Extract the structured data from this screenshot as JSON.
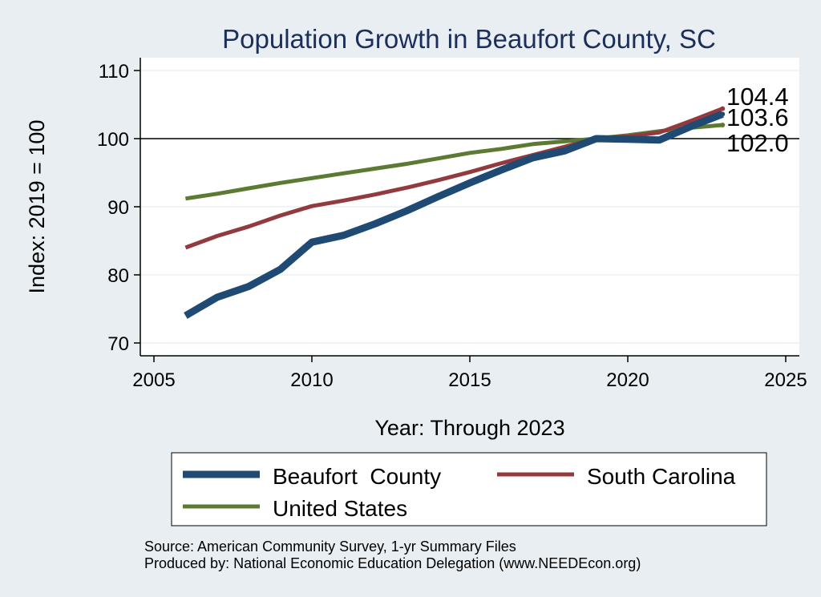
{
  "chart_data": {
    "type": "line",
    "title": "Population Growth in Beaufort County, SC",
    "xlabel": "Year: Through 2023",
    "ylabel": "Index: 2019 = 100",
    "xlim": [
      2005,
      2025
    ],
    "ylim": [
      70,
      110
    ],
    "xticks": [
      "2005",
      "2010",
      "2015",
      "2020",
      "2025"
    ],
    "yticks": [
      "70",
      "80",
      "90",
      "100",
      "110"
    ],
    "reference_line": 100,
    "grid": true,
    "legend_position": "bottom",
    "end_labels": [
      "104.4",
      "103.6",
      "102.0"
    ],
    "series": [
      {
        "name": "Beaufort  County",
        "color": "#1e4a74",
        "x": [
          2006,
          2007,
          2008,
          2009,
          2010,
          2011,
          2012,
          2013,
          2014,
          2015,
          2016,
          2017,
          2018,
          2019,
          2020,
          2021,
          2022,
          2023
        ],
        "values": [
          74.0,
          76.7,
          78.3,
          80.8,
          84.8,
          85.8,
          87.5,
          89.4,
          91.5,
          93.5,
          95.4,
          97.2,
          98.2,
          100.0,
          99.9,
          99.8,
          101.8,
          103.6
        ]
      },
      {
        "name": "South Carolina",
        "color": "#933a3f",
        "x": [
          2006,
          2007,
          2008,
          2009,
          2010,
          2011,
          2012,
          2013,
          2014,
          2015,
          2016,
          2017,
          2018,
          2019,
          2020,
          2021,
          2022,
          2023
        ],
        "values": [
          84.0,
          85.7,
          87.1,
          88.7,
          90.1,
          90.9,
          91.8,
          92.8,
          93.9,
          95.1,
          96.4,
          97.6,
          98.8,
          100.0,
          100.3,
          100.9,
          102.6,
          104.4
        ]
      },
      {
        "name": "United States",
        "color": "#5b7a32",
        "x": [
          2006,
          2007,
          2008,
          2009,
          2010,
          2011,
          2012,
          2013,
          2014,
          2015,
          2016,
          2017,
          2018,
          2019,
          2020,
          2021,
          2022,
          2023
        ],
        "values": [
          91.2,
          91.9,
          92.7,
          93.5,
          94.2,
          94.9,
          95.6,
          96.3,
          97.1,
          97.9,
          98.5,
          99.2,
          99.6,
          100.0,
          100.5,
          101.1,
          101.6,
          102.0
        ]
      }
    ],
    "source_lines": [
      "Source: American Community Survey, 1-yr Summary Files",
      "Produced by: National Economic Education Delegation (www.NEEDEcon.org)"
    ]
  }
}
